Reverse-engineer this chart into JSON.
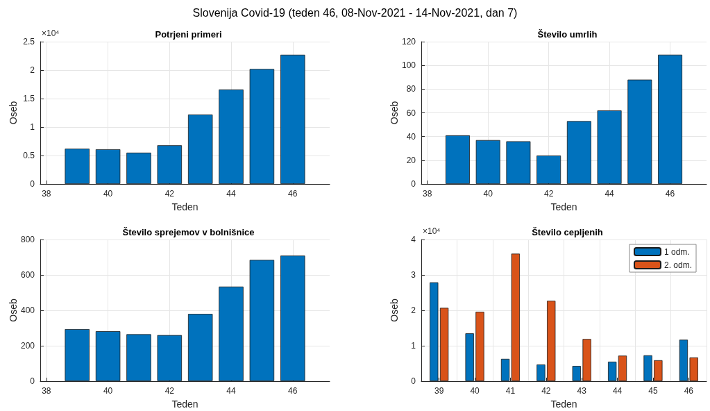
{
  "chart_data": [
    {
      "type": "bar",
      "title": "Potrjeni primeri",
      "xlabel": "Teden",
      "ylabel": "Oseb",
      "annotations": [
        "×10⁴",
        "Slovenija Covid-19 (teden 46, 08-Nov-2021 - 14-Nov-2021, dan 7)"
      ],
      "x": [
        39,
        40,
        41,
        42,
        43,
        44,
        45,
        46
      ],
      "values": [
        0.62,
        0.61,
        0.55,
        0.68,
        1.22,
        1.66,
        2.02,
        2.27
      ],
      "color": "#0072bd",
      "xlim": [
        37.8,
        47.2
      ],
      "xticks": [
        38,
        40,
        42,
        44,
        46
      ],
      "ylim": [
        0,
        2.5
      ],
      "yticks": [
        0,
        0.5,
        1,
        1.5,
        2,
        2.5
      ],
      "grid": true
    },
    {
      "type": "bar",
      "title": "Število umrlih",
      "xlabel": "Teden",
      "ylabel": "Oseb",
      "x": [
        39,
        40,
        41,
        42,
        43,
        44,
        45,
        46
      ],
      "values": [
        41,
        37,
        36,
        24,
        53,
        62,
        88,
        109
      ],
      "color": "#0072bd",
      "xlim": [
        37.8,
        47.2
      ],
      "xticks": [
        38,
        40,
        42,
        44,
        46
      ],
      "ylim": [
        0,
        120
      ],
      "yticks": [
        0,
        20,
        40,
        60,
        80,
        100,
        120
      ],
      "grid": true
    },
    {
      "type": "bar",
      "title": "Število sprejemov v bolnišnice",
      "xlabel": "Teden",
      "ylabel": "Oseb",
      "x": [
        39,
        40,
        41,
        42,
        43,
        44,
        45,
        46
      ],
      "values": [
        294,
        282,
        265,
        260,
        380,
        534,
        685,
        709
      ],
      "color": "#0072bd",
      "xlim": [
        37.8,
        47.2
      ],
      "xticks": [
        38,
        40,
        42,
        44,
        46
      ],
      "ylim": [
        0,
        800
      ],
      "yticks": [
        0,
        200,
        400,
        600,
        800
      ],
      "grid": true
    },
    {
      "type": "bar",
      "title": "Število cepljenih",
      "xlabel": "Teden",
      "ylabel": "Oseb",
      "annotations": [
        "×10⁴"
      ],
      "categories": [
        "39",
        "40",
        "41",
        "42",
        "43",
        "44",
        "45",
        "46"
      ],
      "series": [
        {
          "name": "1 odm.",
          "color": "#0072bd",
          "values": [
            2.79,
            1.35,
            0.63,
            0.47,
            0.43,
            0.55,
            0.73,
            1.17
          ]
        },
        {
          "name": "2. odm.",
          "color": "#d95319",
          "values": [
            2.07,
            1.96,
            3.6,
            2.27,
            1.19,
            0.72,
            0.59,
            0.67
          ]
        }
      ],
      "ylim": [
        0,
        4
      ],
      "yticks": [
        0,
        1,
        2,
        3,
        4
      ],
      "grid": true,
      "legend": "top right"
    }
  ]
}
